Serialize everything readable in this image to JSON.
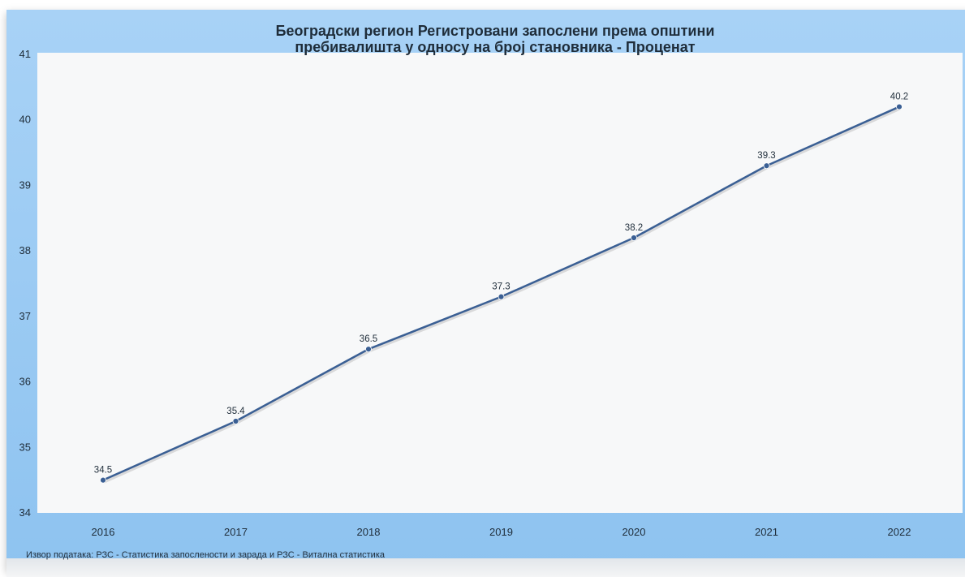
{
  "chart_data": {
    "type": "line",
    "title": "Београдски регион Регистровани запослени према општини пребивалишта у односу на број становника - Проценат",
    "title_lines": [
      "Београдски регион Регистровани запослени према општини",
      "пребивалишта у односу на број становника - Проценат"
    ],
    "xlabel": "",
    "ylabel": "",
    "categories": [
      "2016",
      "2017",
      "2018",
      "2019",
      "2020",
      "2021",
      "2022"
    ],
    "series": [
      {
        "values": [
          34.5,
          35.4,
          36.5,
          37.3,
          38.2,
          39.3,
          40.2
        ],
        "color": "#3a5f94"
      }
    ],
    "data_labels": [
      "34.5",
      "35.4",
      "36.5",
      "37.3",
      "38.2",
      "39.3",
      "40.2"
    ],
    "ylim": [
      34,
      41
    ],
    "y_ticks": [
      "34",
      "35",
      "36",
      "37",
      "38",
      "39",
      "40",
      "41"
    ],
    "grid": false,
    "legend": "none"
  },
  "source_note": "Извор података: РЗС - Статистика запослености и зарада и РЗС - Витална статистика",
  "colors": {
    "frame": "#95c7f2",
    "plot_background": "#f7f8f9",
    "line": "#3a5f94",
    "text": "#1f2d3a"
  }
}
